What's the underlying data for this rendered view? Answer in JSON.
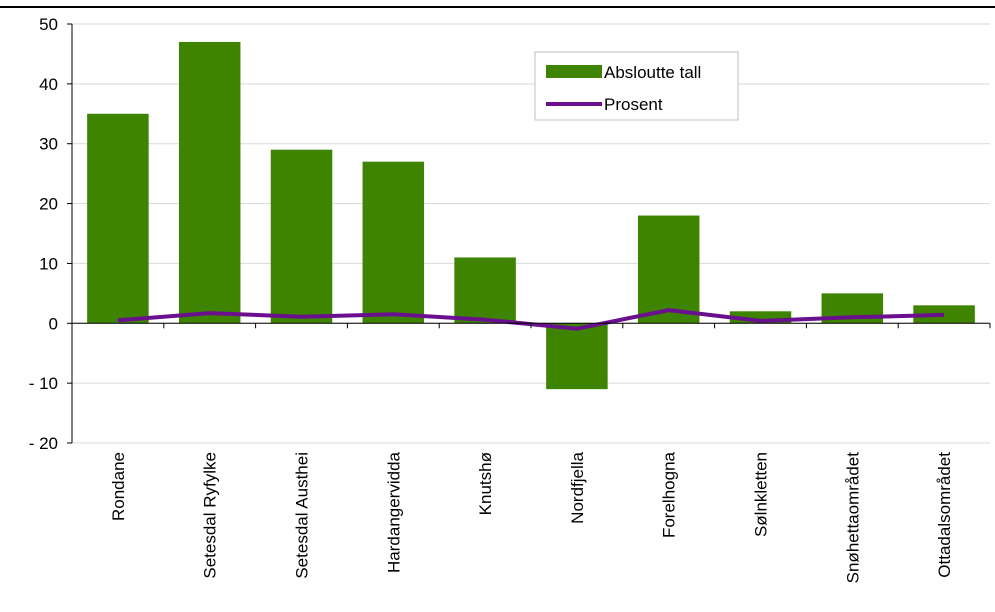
{
  "chart_data": {
    "type": "bar",
    "categories": [
      "Rondane",
      "Setesdal Ryfylke",
      "Setesdal Austhei",
      "Hardangervidda",
      "Knutshø",
      "Nordfjella",
      "Forelhogna",
      "Sølnkletten",
      "Snøhettaområdet",
      "Ottadalsområdet"
    ],
    "series": [
      {
        "name": "Absloutte tall",
        "kind": "bar",
        "color": "#3e8400",
        "values": [
          35,
          47,
          29,
          27,
          11,
          -11,
          18,
          2,
          5,
          3
        ]
      },
      {
        "name": "Prosent",
        "kind": "line",
        "color": "#6a0f8e",
        "values": [
          0.5,
          1.7,
          1.1,
          1.5,
          0.6,
          -0.9,
          2.2,
          0.4,
          1.0,
          1.4
        ]
      }
    ],
    "y_ticks": [
      "50",
      "40",
      "30",
      "20",
      "10",
      "0",
      "- 10",
      "- 20"
    ],
    "ylim": [
      -20,
      50
    ],
    "grid": true,
    "legend_position": "top-right"
  }
}
